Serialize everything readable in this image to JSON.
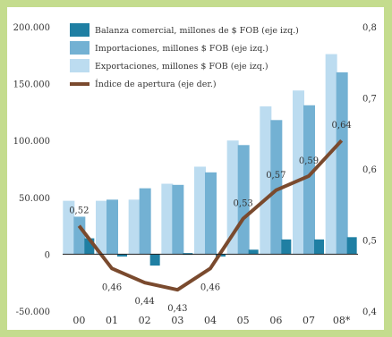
{
  "chart_data": {
    "type": "bar+line",
    "categories": [
      "00",
      "01",
      "02",
      "03",
      "04",
      "05",
      "06",
      "07",
      "08*"
    ],
    "series": [
      {
        "name": "Balanza comercial, millones de $ FOB (eje izq.)",
        "kind": "bar",
        "axis": "left",
        "color": "#1f7fa3",
        "values": [
          14000,
          -2000,
          -10000,
          1000,
          -2000,
          4000,
          13000,
          13000,
          15000
        ]
      },
      {
        "name": "Importaciones, millones $ FOB (eje izq.)",
        "kind": "bar",
        "axis": "left",
        "color": "#73b1d3",
        "values": [
          33000,
          48000,
          58000,
          61000,
          72000,
          96000,
          118000,
          131000,
          160000
        ]
      },
      {
        "name": "Exportaciones, millones $ FOB (eje izq.)",
        "kind": "bar",
        "axis": "left",
        "color": "#bcdcf0",
        "values": [
          47000,
          47000,
          48000,
          62000,
          77000,
          100000,
          130000,
          144000,
          176000
        ]
      },
      {
        "name": "Índice de apertura (eje der.)",
        "kind": "line",
        "axis": "right",
        "color": "#7a4a2e",
        "values": [
          0.52,
          0.46,
          0.44,
          0.43,
          0.46,
          0.53,
          0.57,
          0.59,
          0.64
        ],
        "labels": [
          "0,52",
          "0,46",
          "0,44",
          "0,43",
          "0,46",
          "0,53",
          "0,57",
          "0,59",
          "0,64"
        ]
      }
    ],
    "left_axis": {
      "ylim": [
        -50000,
        200000
      ],
      "ticks": [
        -50000,
        0,
        50000,
        100000,
        150000,
        200000
      ],
      "tick_labels": [
        "-50.000",
        "0",
        "50.000",
        "100.000",
        "150.000",
        "200.000"
      ]
    },
    "right_axis": {
      "ylim": [
        0.4,
        0.8
      ],
      "ticks": [
        0.4,
        0.5,
        0.6,
        0.7,
        0.8
      ],
      "tick_labels": [
        "0,4",
        "0,5",
        "0,6",
        "0,7",
        "0,8"
      ]
    },
    "grid": false,
    "legend_position": "top-left"
  }
}
